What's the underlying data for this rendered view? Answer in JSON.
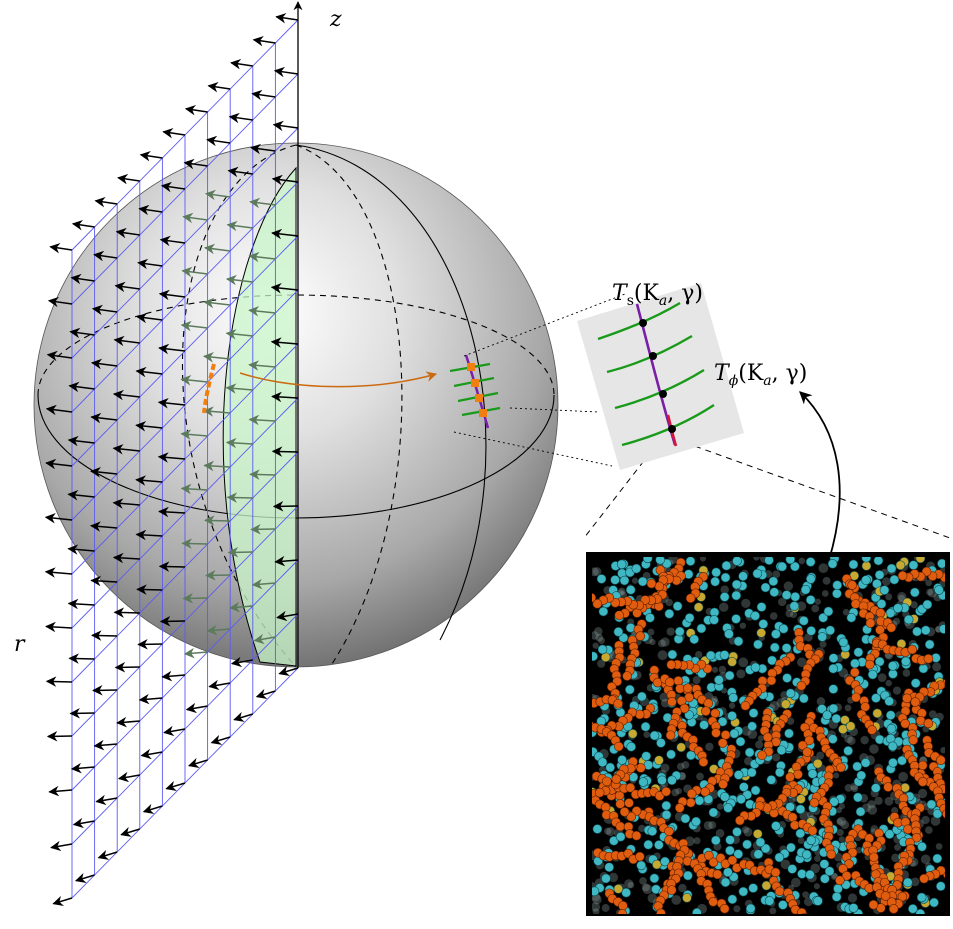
{
  "axes": {
    "z_label": "z",
    "r_label": "r"
  },
  "labels": {
    "ts_label": "T",
    "ts_sub": "s",
    "ts_args": "(K",
    "ts_args_sub": "a",
    "ts_args_end": ", γ)",
    "tphi_label": "T",
    "tphi_sub": "ϕ",
    "tphi_args": "(K",
    "tphi_args_sub": "a",
    "tphi_args_end": ", γ)"
  },
  "colors": {
    "grid": "#5b5bf2",
    "sphere_light": "#ffffff",
    "sphere_dark": "#6b6b6b",
    "slice": "#c8f5c8",
    "contour": "#f07f12",
    "arrow_orange": "#cc6a10",
    "green_lines": "#1a9a1a",
    "purple_line": "#7a1ea8",
    "red_line": "#d4143c",
    "panel_bg": "#e6e6e6",
    "sim_bg": "#000000",
    "sim_orange": "#e05d10",
    "sim_cyan": "#3fb8c4",
    "sim_yellow": "#c7a830"
  }
}
